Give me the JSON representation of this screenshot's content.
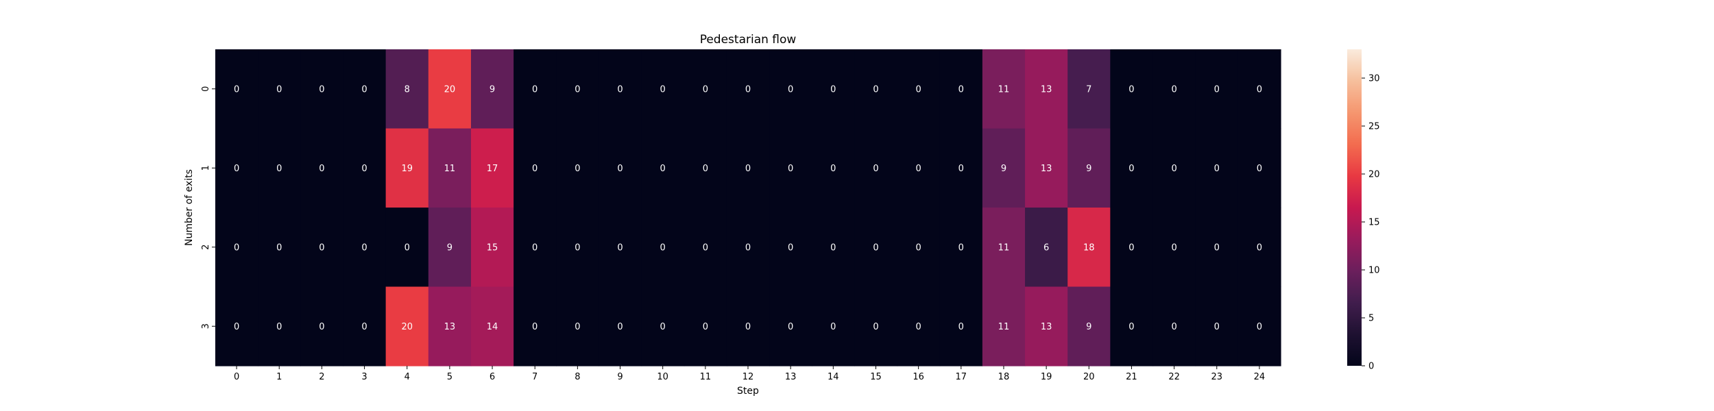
{
  "chart_data": {
    "type": "heatmap",
    "title": "Pedestarian flow",
    "xlabel": "Step",
    "ylabel": "Number of exits",
    "x": [
      "0",
      "1",
      "2",
      "3",
      "4",
      "5",
      "6",
      "7",
      "8",
      "9",
      "10",
      "11",
      "12",
      "13",
      "14",
      "15",
      "16",
      "17",
      "18",
      "19",
      "20",
      "21",
      "22",
      "23",
      "24"
    ],
    "y": [
      "0",
      "1",
      "2",
      "3"
    ],
    "values": [
      [
        0,
        0,
        0,
        0,
        8,
        20,
        9,
        0,
        0,
        0,
        0,
        0,
        0,
        0,
        0,
        0,
        0,
        0,
        11,
        13,
        7,
        0,
        0,
        0,
        0
      ],
      [
        0,
        0,
        0,
        0,
        19,
        11,
        17,
        0,
        0,
        0,
        0,
        0,
        0,
        0,
        0,
        0,
        0,
        0,
        9,
        13,
        9,
        0,
        0,
        0,
        0
      ],
      [
        0,
        0,
        0,
        0,
        0,
        9,
        15,
        0,
        0,
        0,
        0,
        0,
        0,
        0,
        0,
        0,
        0,
        0,
        11,
        6,
        18,
        0,
        0,
        0,
        0
      ],
      [
        0,
        0,
        0,
        0,
        20,
        13,
        14,
        0,
        0,
        0,
        0,
        0,
        0,
        0,
        0,
        0,
        0,
        0,
        11,
        13,
        9,
        0,
        0,
        0,
        0
      ]
    ],
    "colorbar": {
      "min": 0,
      "max": 33,
      "ticks": [
        "0",
        "5",
        "10",
        "15",
        "20",
        "25",
        "30"
      ]
    },
    "colormap": "rocket"
  }
}
